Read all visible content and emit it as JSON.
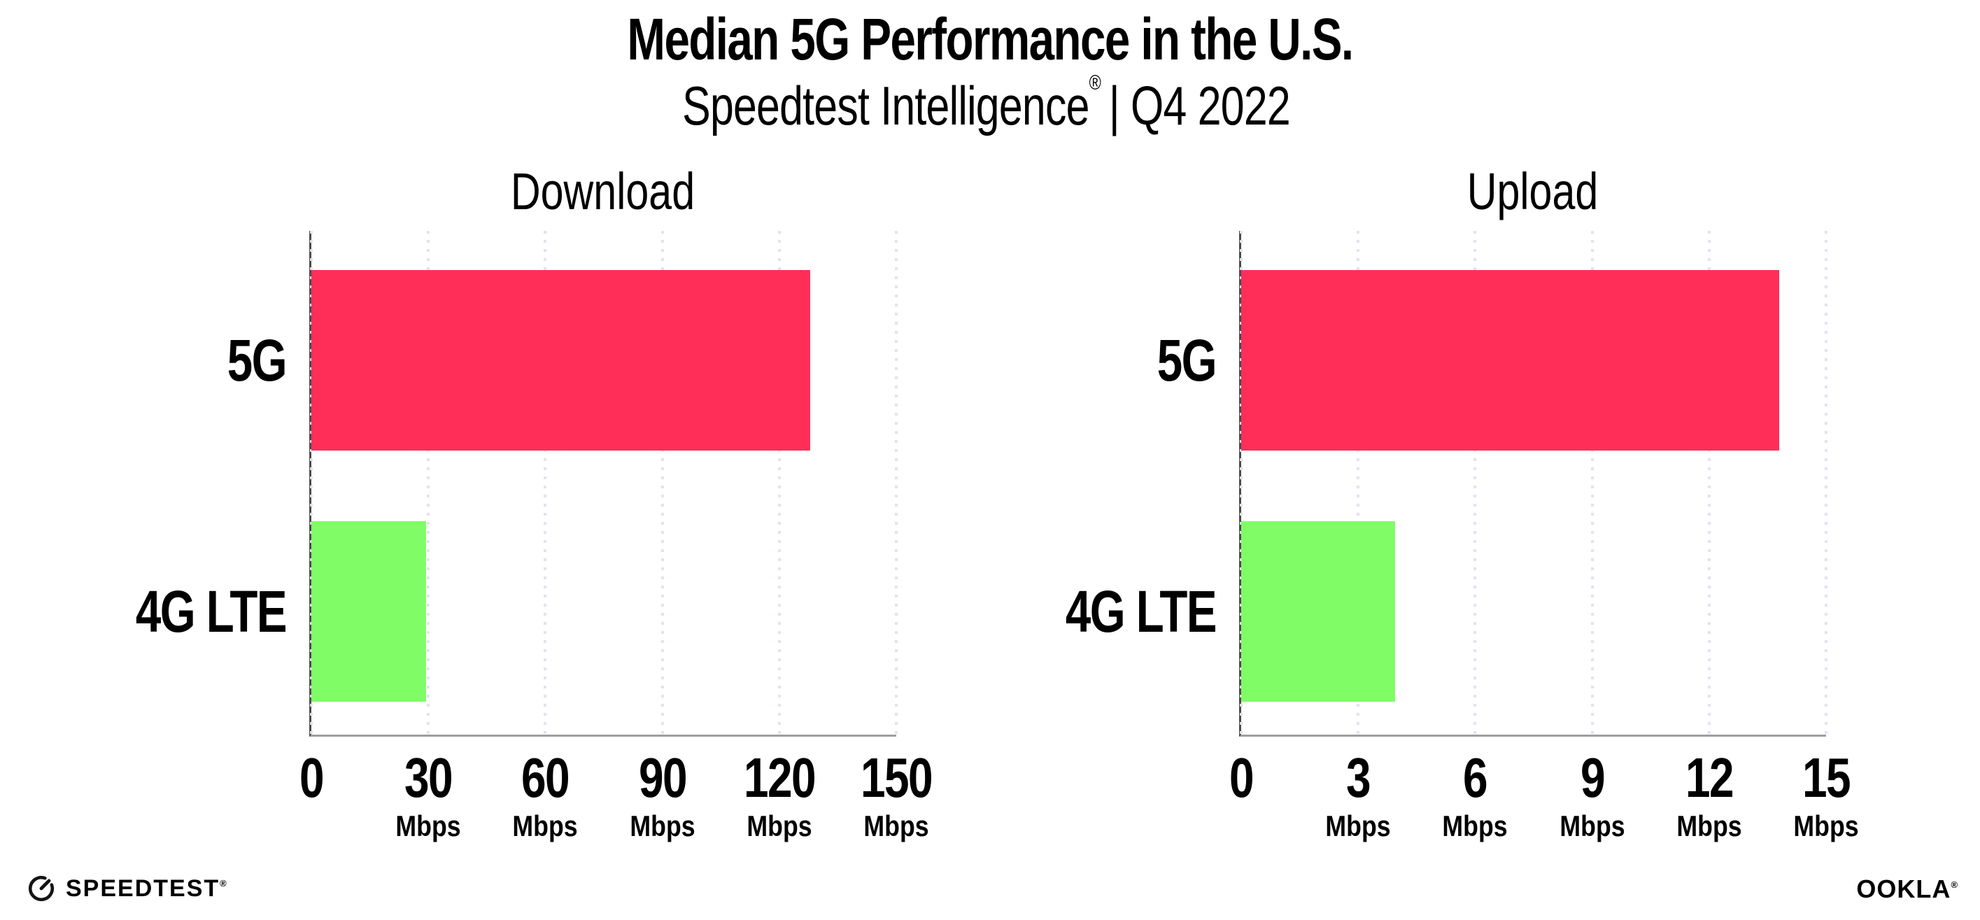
{
  "header": {
    "title": "Median 5G Performance in the U.S.",
    "subtitle_brand": "Speedtest Intelligence",
    "subtitle_reg": "®",
    "subtitle_rest": "| Q4 2022"
  },
  "chart_data": [
    {
      "type": "bar",
      "orientation": "horizontal",
      "title": "Download",
      "categories": [
        "5G",
        "4G LTE"
      ],
      "values": [
        128,
        29.5
      ],
      "unit": "Mbps",
      "xlim": [
        0,
        150
      ],
      "xticks": [
        0,
        30,
        60,
        90,
        120,
        150
      ],
      "tick_labels": [
        {
          "n": "0",
          "u": ""
        },
        {
          "n": "30",
          "u": "Mbps"
        },
        {
          "n": "60",
          "u": "Mbps"
        },
        {
          "n": "90",
          "u": "Mbps"
        },
        {
          "n": "120",
          "u": "Mbps"
        },
        {
          "n": "150",
          "u": "Mbps"
        }
      ],
      "bar_colors": [
        "#FF2E59",
        "#80FC66"
      ],
      "grid": "dotted-vertical",
      "legend": "none"
    },
    {
      "type": "bar",
      "orientation": "horizontal",
      "title": "Upload",
      "categories": [
        "5G",
        "4G LTE"
      ],
      "values": [
        13.8,
        3.95
      ],
      "unit": "Mbps",
      "xlim": [
        0,
        15
      ],
      "xticks": [
        0,
        3,
        6,
        9,
        12,
        15
      ],
      "tick_labels": [
        {
          "n": "0",
          "u": ""
        },
        {
          "n": "3",
          "u": "Mbps"
        },
        {
          "n": "6",
          "u": "Mbps"
        },
        {
          "n": "9",
          "u": "Mbps"
        },
        {
          "n": "12",
          "u": "Mbps"
        },
        {
          "n": "15",
          "u": "Mbps"
        }
      ],
      "bar_colors": [
        "#FF2E59",
        "#80FC66"
      ],
      "grid": "dotted-vertical",
      "legend": "none"
    }
  ],
  "footer": {
    "speedtest_label": "SPEEDTEST",
    "speedtest_mark": "®",
    "ookla_label": "OOKLA",
    "ookla_mark": "®"
  },
  "colors": {
    "bar_5g": "#FF2E59",
    "bar_4g_lte": "#80FC66",
    "gridline": "#E2E2F0",
    "axis_y": "#4A4A4A",
    "axis_x": "#9E9E9E",
    "text": "#000000"
  }
}
